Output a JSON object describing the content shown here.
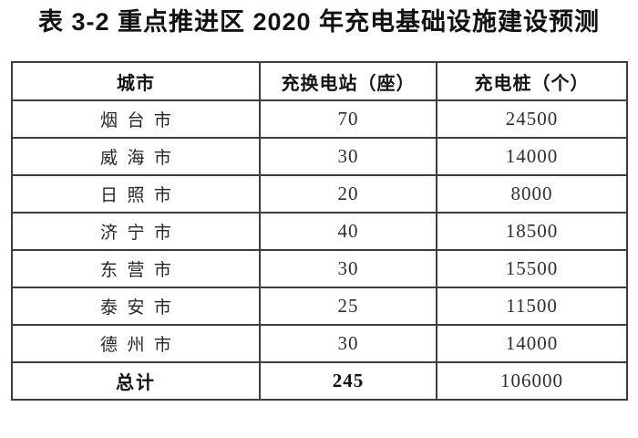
{
  "title": "表 3-2 重点推进区 2020 年充电基础设施建设预测",
  "table": {
    "columns": [
      "城市",
      "充换电站（座）",
      "充电桩（个）"
    ],
    "rows": [
      {
        "city": "烟台市",
        "stations": "70",
        "piles": "24500"
      },
      {
        "city": "威海市",
        "stations": "30",
        "piles": "14000"
      },
      {
        "city": "日照市",
        "stations": "20",
        "piles": "8000"
      },
      {
        "city": "济宁市",
        "stations": "40",
        "piles": "18500"
      },
      {
        "city": "东营市",
        "stations": "30",
        "piles": "15500"
      },
      {
        "city": "泰安市",
        "stations": "25",
        "piles": "11500"
      },
      {
        "city": "德州市",
        "stations": "30",
        "piles": "14000"
      }
    ],
    "total": {
      "label": "总计",
      "stations": "245",
      "piles": "106000"
    }
  },
  "colors": {
    "background": "#ffffff",
    "text": "#141414",
    "border": "#3e3e3e"
  }
}
